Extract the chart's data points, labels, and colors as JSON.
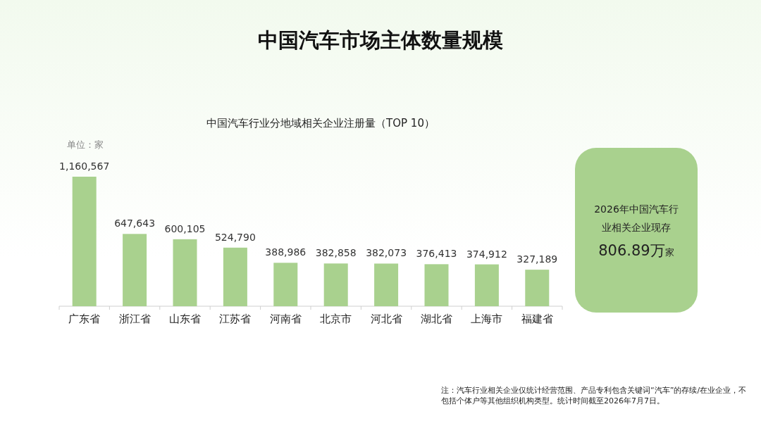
{
  "chart_data": [
    {
      "type": "bar",
      "title": "中国汽车市场主体数量规模",
      "subtitle": "中国汽车行业分地域相关企业注册量（TOP 10）",
      "ylabel": "单位：家",
      "categories": [
        "广东省",
        "浙江省",
        "山东省",
        "江苏省",
        "河南省",
        "北京市",
        "河北省",
        "湖北省",
        "上海市",
        "福建省"
      ],
      "values": [
        1160567,
        647643,
        600105,
        524790,
        388986,
        382858,
        382073,
        376413,
        374912,
        327189
      ],
      "value_labels": [
        "1,160,567",
        "647,643",
        "600,105",
        "524,790",
        "388,986",
        "382,858",
        "382,073",
        "376,413",
        "374,912",
        "327,189"
      ],
      "color": "#a9d18e",
      "annotations": [
        "注：汽车行业相关企业仅统计经营范围、产品专利包含关键词“汽车”的存续/在业企业，不包括个体户等其他组织机构类型。统计时间截至2026年7月7日。"
      ]
    },
    {
      "type": "other",
      "annotations": [
        "2026年中国汽车行业相关企业现存",
        "806.89万",
        "家"
      ]
    }
  ]
}
